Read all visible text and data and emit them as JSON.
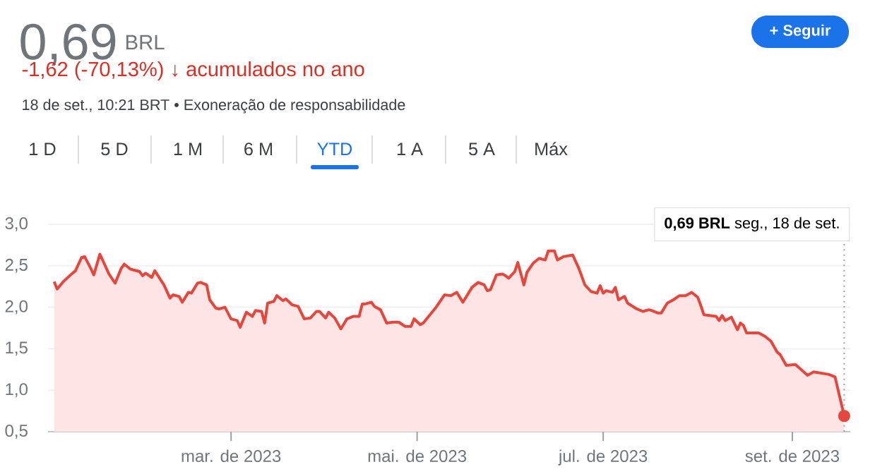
{
  "chart_data": {
    "type": "area",
    "title": "0,69",
    "annotations": [
      "BRL",
      "-1,62 (-70,13%) ↓ acumulados no ano",
      "18 de set., 10:21 BRT • Exoneração de responsabilidade",
      "1 D",
      "5 D",
      "1 M",
      "6 M",
      "YTD",
      "1 A",
      "5 A",
      "Máx",
      "+ Seguir"
    ],
    "x": [
      "2023-01-02",
      "2023-01-03",
      "2023-01-05",
      "2023-01-08",
      "2023-01-09",
      "2023-01-11",
      "2023-01-12",
      "2023-01-14",
      "2023-01-15",
      "2023-01-17",
      "2023-01-18",
      "2023-01-20",
      "2023-01-22",
      "2023-01-24",
      "2023-01-25",
      "2023-01-27",
      "2023-01-30",
      "2023-01-31",
      "2023-02-01",
      "2023-02-03",
      "2023-02-04",
      "2023-02-07",
      "2023-02-09",
      "2023-02-10",
      "2023-02-12",
      "2023-02-13",
      "2023-02-15",
      "2023-02-16",
      "2023-02-18",
      "2023-02-19",
      "2023-02-21",
      "2023-02-22",
      "2023-02-24",
      "2023-02-25",
      "2023-02-27",
      "2023-03-01",
      "2023-03-03",
      "2023-03-04",
      "2023-03-06",
      "2023-03-08",
      "2023-03-09",
      "2023-03-11",
      "2023-03-12",
      "2023-03-13",
      "2023-03-15",
      "2023-03-16",
      "2023-03-18",
      "2023-03-19",
      "2023-03-21",
      "2023-03-23",
      "2023-03-25",
      "2023-03-27",
      "2023-03-29",
      "2023-03-30",
      "2023-04-01",
      "2023-04-02",
      "2023-04-04",
      "2023-04-06",
      "2023-04-08",
      "2023-04-10",
      "2023-04-12",
      "2023-04-13",
      "2023-04-14",
      "2023-04-16",
      "2023-04-17",
      "2023-04-19",
      "2023-04-21",
      "2023-04-23",
      "2023-04-25",
      "2023-04-27",
      "2023-04-29",
      "2023-04-30",
      "2023-05-02",
      "2023-05-03",
      "2023-05-07",
      "2023-05-10",
      "2023-05-12",
      "2023-05-14",
      "2023-05-16",
      "2023-05-17",
      "2023-05-19",
      "2023-05-21",
      "2023-05-23",
      "2023-05-24",
      "2023-05-25",
      "2023-05-27",
      "2023-05-29",
      "2023-05-30",
      "2023-05-31",
      "2023-06-02",
      "2023-06-03",
      "2023-06-05",
      "2023-06-06",
      "2023-06-08",
      "2023-06-10",
      "2023-06-12",
      "2023-06-13",
      "2023-06-15",
      "2023-06-16",
      "2023-06-18",
      "2023-06-21",
      "2023-06-23",
      "2023-06-25",
      "2023-06-27",
      "2023-06-29",
      "2023-06-30",
      "2023-07-01",
      "2023-07-02",
      "2023-07-04",
      "2023-07-05",
      "2023-07-06",
      "2023-07-08",
      "2023-07-09",
      "2023-07-12",
      "2023-07-14",
      "2023-07-16",
      "2023-07-17",
      "2023-07-19",
      "2023-07-20",
      "2023-07-22",
      "2023-07-24",
      "2023-07-26",
      "2023-07-28",
      "2023-07-30",
      "2023-08-01",
      "2023-08-02",
      "2023-08-03",
      "2023-08-07",
      "2023-08-08",
      "2023-08-09",
      "2023-08-10",
      "2023-08-12",
      "2023-08-14",
      "2023-08-15",
      "2023-08-16",
      "2023-08-17",
      "2023-08-21",
      "2023-08-23",
      "2023-08-25",
      "2023-08-27",
      "2023-08-28",
      "2023-08-30",
      "2023-09-02",
      "2023-09-06",
      "2023-09-08",
      "2023-09-13",
      "2023-09-15",
      "2023-09-18"
    ],
    "series": [
      {
        "color": "#e8453c",
        "values": [
          2.31,
          2.22,
          2.31,
          2.41,
          2.44,
          2.6,
          2.61,
          2.47,
          2.39,
          2.64,
          2.56,
          2.4,
          2.29,
          2.47,
          2.52,
          2.46,
          2.43,
          2.38,
          2.41,
          2.36,
          2.44,
          2.27,
          2.11,
          2.15,
          2.13,
          2.06,
          2.18,
          2.17,
          2.29,
          2.3,
          2.27,
          2.09,
          1.99,
          1.98,
          2.0,
          1.86,
          1.84,
          1.76,
          1.94,
          1.89,
          1.96,
          1.95,
          1.81,
          2.05,
          2.07,
          2.14,
          2.08,
          2.1,
          2.03,
          2.01,
          1.86,
          1.87,
          1.95,
          1.95,
          1.87,
          1.94,
          1.87,
          1.74,
          1.86,
          1.89,
          1.89,
          2.04,
          2.04,
          2.06,
          2.01,
          1.97,
          1.81,
          1.82,
          1.82,
          1.77,
          1.77,
          1.86,
          1.79,
          1.81,
          1.99,
          2.15,
          2.14,
          2.18,
          2.06,
          2.12,
          2.24,
          2.3,
          2.27,
          2.2,
          2.21,
          2.39,
          2.4,
          2.38,
          2.35,
          2.43,
          2.54,
          2.27,
          2.42,
          2.53,
          2.59,
          2.57,
          2.68,
          2.68,
          2.57,
          2.61,
          2.63,
          2.47,
          2.27,
          2.19,
          2.17,
          2.26,
          2.17,
          2.2,
          2.18,
          2.24,
          2.09,
          2.13,
          2.05,
          1.98,
          1.95,
          1.97,
          1.96,
          1.93,
          1.93,
          2.05,
          2.09,
          2.14,
          2.14,
          2.18,
          2.12,
          2.02,
          1.91,
          1.89,
          1.84,
          1.9,
          1.84,
          1.88,
          1.73,
          1.81,
          1.78,
          1.69,
          1.69,
          1.65,
          1.59,
          1.46,
          1.43,
          1.3,
          1.31,
          1.18,
          1.22,
          1.19,
          1.16,
          0.69
        ]
      },
      {
        "type": "scatter",
        "x": [
          "2023-09-18"
        ],
        "values": [
          0.69
        ],
        "color": "#e8453c",
        "marker": "circle"
      }
    ],
    "xlim": [
      "2022-12-31",
      "2023-09-20"
    ],
    "xticks": [
      {
        "value": "2023-03-01",
        "label": "mar. de 2023"
      },
      {
        "value": "2023-05-01",
        "label": "mai. de 2023"
      },
      {
        "value": "2023-07-01",
        "label": "jul. de 2023"
      },
      {
        "value": "2023-09-01",
        "label": "set. de 2023"
      }
    ],
    "ylim": [
      0.5,
      3.0
    ],
    "yticks": [
      {
        "value": 0.5,
        "label": "0,5"
      },
      {
        "value": 1.0,
        "label": "1,0"
      },
      {
        "value": 1.5,
        "label": "1,5"
      },
      {
        "value": 2.0,
        "label": "2,0"
      },
      {
        "value": 2.5,
        "label": "2,5"
      },
      {
        "value": 3.0,
        "label": "3,0"
      }
    ],
    "grid": "y",
    "marker": "none",
    "line_style": "solid",
    "ref_lines": [
      {
        "axis": "x",
        "value": "2023-09-18",
        "label": "**0,69 BRL** seg., 18 de set.",
        "color": "#9aa0a6",
        "line_style": "dotted"
      }
    ]
  }
}
